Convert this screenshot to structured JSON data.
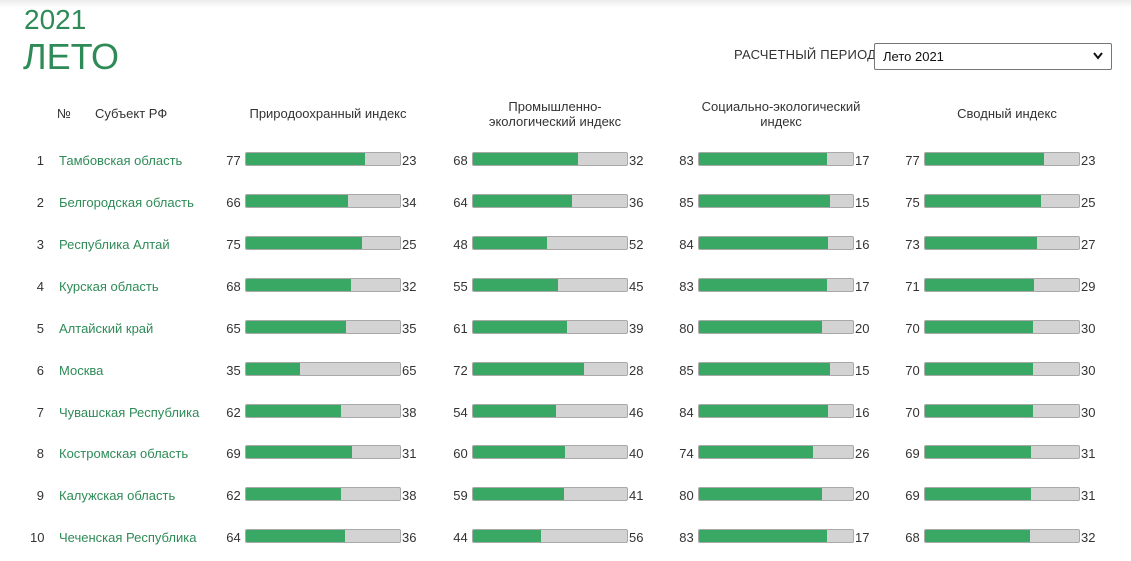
{
  "header": {
    "year": "2021",
    "season": "ЛЕТО"
  },
  "period": {
    "label": "РАСЧЕТНЫЙ ПЕРИОД",
    "selected": "Лето 2021"
  },
  "columns": {
    "no": "№",
    "subject": "Субъект РФ",
    "c1": "Природоохранный индекс",
    "c2": "Промышленно-экологический индекс",
    "c3": "Социально-экологический индекс",
    "c4": "Сводный индекс"
  },
  "rows": [
    {
      "rank": "1",
      "name": "Тамбовская область",
      "c1": {
        "v": "77",
        "r": "23"
      },
      "c2": {
        "v": "68",
        "r": "32"
      },
      "c3": {
        "v": "83",
        "r": "17"
      },
      "c4": {
        "v": "77",
        "r": "23"
      }
    },
    {
      "rank": "2",
      "name": "Белгородская область",
      "c1": {
        "v": "66",
        "r": "34"
      },
      "c2": {
        "v": "64",
        "r": "36"
      },
      "c3": {
        "v": "85",
        "r": "15"
      },
      "c4": {
        "v": "75",
        "r": "25"
      }
    },
    {
      "rank": "3",
      "name": "Республика Алтай",
      "c1": {
        "v": "75",
        "r": "25"
      },
      "c2": {
        "v": "48",
        "r": "52"
      },
      "c3": {
        "v": "84",
        "r": "16"
      },
      "c4": {
        "v": "73",
        "r": "27"
      }
    },
    {
      "rank": "4",
      "name": "Курская область",
      "c1": {
        "v": "68",
        "r": "32"
      },
      "c2": {
        "v": "55",
        "r": "45"
      },
      "c3": {
        "v": "83",
        "r": "17"
      },
      "c4": {
        "v": "71",
        "r": "29"
      }
    },
    {
      "rank": "5",
      "name": "Алтайский край",
      "c1": {
        "v": "65",
        "r": "35"
      },
      "c2": {
        "v": "61",
        "r": "39"
      },
      "c3": {
        "v": "80",
        "r": "20"
      },
      "c4": {
        "v": "70",
        "r": "30"
      }
    },
    {
      "rank": "6",
      "name": "Москва",
      "c1": {
        "v": "35",
        "r": "65"
      },
      "c2": {
        "v": "72",
        "r": "28"
      },
      "c3": {
        "v": "85",
        "r": "15"
      },
      "c4": {
        "v": "70",
        "r": "30"
      }
    },
    {
      "rank": "7",
      "name": "Чувашская Республика",
      "c1": {
        "v": "62",
        "r": "38"
      },
      "c2": {
        "v": "54",
        "r": "46"
      },
      "c3": {
        "v": "84",
        "r": "16"
      },
      "c4": {
        "v": "70",
        "r": "30"
      }
    },
    {
      "rank": "8",
      "name": "Костромская область",
      "c1": {
        "v": "69",
        "r": "31"
      },
      "c2": {
        "v": "60",
        "r": "40"
      },
      "c3": {
        "v": "74",
        "r": "26"
      },
      "c4": {
        "v": "69",
        "r": "31"
      }
    },
    {
      "rank": "9",
      "name": "Калужская область",
      "c1": {
        "v": "62",
        "r": "38"
      },
      "c2": {
        "v": "59",
        "r": "41"
      },
      "c3": {
        "v": "80",
        "r": "20"
      },
      "c4": {
        "v": "69",
        "r": "31"
      }
    },
    {
      "rank": "10",
      "name": "Чеченская Республика",
      "c1": {
        "v": "64",
        "r": "36"
      },
      "c2": {
        "v": "44",
        "r": "56"
      },
      "c3": {
        "v": "83",
        "r": "17"
      },
      "c4": {
        "v": "68",
        "r": "32"
      }
    }
  ],
  "colors": {
    "accent": "#2e8b57",
    "bar_fill": "#3aa865",
    "bar_track": "#d3d3d3"
  }
}
